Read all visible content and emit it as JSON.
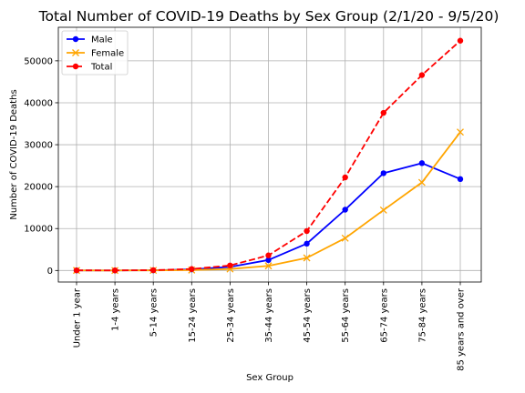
{
  "chart_data": {
    "type": "line",
    "title": "Total Number of COVID-19 Deaths by Sex Group (2/1/20 - 9/5/20)",
    "xlabel": "Sex Group",
    "ylabel": "Number of COVID-19 Deaths",
    "categories": [
      "Under 1 year",
      "1-4 years",
      "5-14 years",
      "15-24 years",
      "25-34 years",
      "35-44 years",
      "45-54 years",
      "55-64 years",
      "65-74 years",
      "75-84 years",
      "85 years and over"
    ],
    "ylim": [
      -2750,
      58000
    ],
    "yticks": [
      0,
      10000,
      20000,
      30000,
      40000,
      50000
    ],
    "grid": true,
    "legend_position": "upper-left",
    "series": [
      {
        "name": "Male",
        "color": "#0000ff",
        "marker": "circle",
        "dash": "solid",
        "values": [
          20,
          10,
          40,
          250,
          850,
          2500,
          6400,
          14500,
          23200,
          25600,
          21800
        ]
      },
      {
        "name": "Female",
        "color": "#ffa500",
        "marker": "x",
        "dash": "solid",
        "values": [
          15,
          8,
          30,
          100,
          350,
          1100,
          3000,
          7700,
          14400,
          21000,
          33000
        ]
      },
      {
        "name": "Total",
        "color": "#ff0000",
        "marker": "circle",
        "dash": "dashed",
        "values": [
          35,
          18,
          70,
          350,
          1200,
          3600,
          9400,
          22200,
          37600,
          46600,
          54800
        ]
      }
    ]
  }
}
